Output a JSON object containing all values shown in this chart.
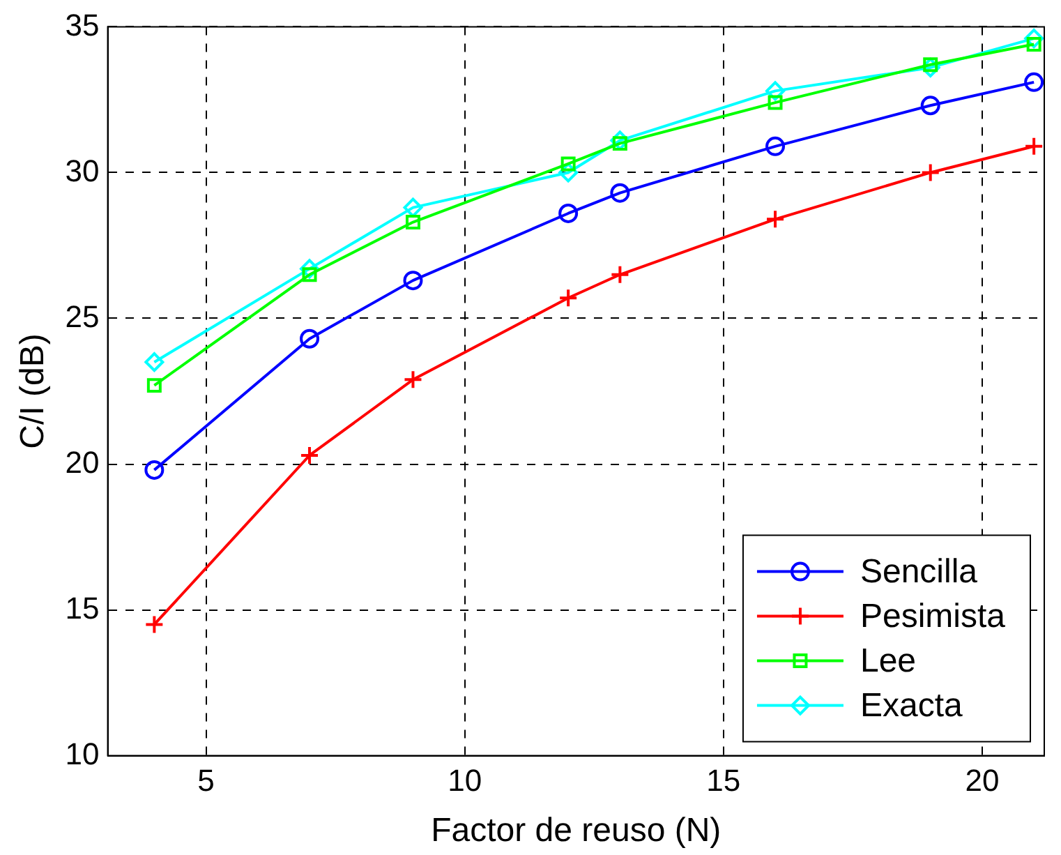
{
  "chart_data": {
    "type": "line",
    "xlabel": "Factor de reuso (N)",
    "ylabel": "C/I (dB)",
    "x": [
      4,
      7,
      9,
      12,
      13,
      16,
      19,
      21
    ],
    "xlim": [
      3.1,
      21.2
    ],
    "xticks": [
      5,
      10,
      15,
      20
    ],
    "ylim": [
      10,
      35
    ],
    "yticks": [
      10,
      15,
      20,
      25,
      30,
      35
    ],
    "grid": true,
    "legend": "bottom right",
    "line_style": "solid",
    "series": [
      {
        "name": "Sencilla",
        "color": "#0000ff",
        "marker": "circle",
        "values": [
          19.8,
          24.3,
          26.3,
          28.6,
          29.3,
          30.9,
          32.3,
          33.1
        ]
      },
      {
        "name": "Pesimista",
        "color": "#ff0000",
        "marker": "cross",
        "values": [
          14.5,
          20.3,
          22.9,
          25.7,
          26.5,
          28.4,
          30.0,
          30.9
        ]
      },
      {
        "name": "Lee",
        "color": "#00ff00",
        "marker": "square",
        "values": [
          22.7,
          26.5,
          28.3,
          30.3,
          31.0,
          32.4,
          33.7,
          34.4
        ]
      },
      {
        "name": "Exacta",
        "color": "#00ffff",
        "marker": "diamond",
        "values": [
          23.5,
          26.7,
          28.8,
          30.0,
          31.1,
          32.8,
          33.6,
          34.6
        ]
      }
    ]
  }
}
